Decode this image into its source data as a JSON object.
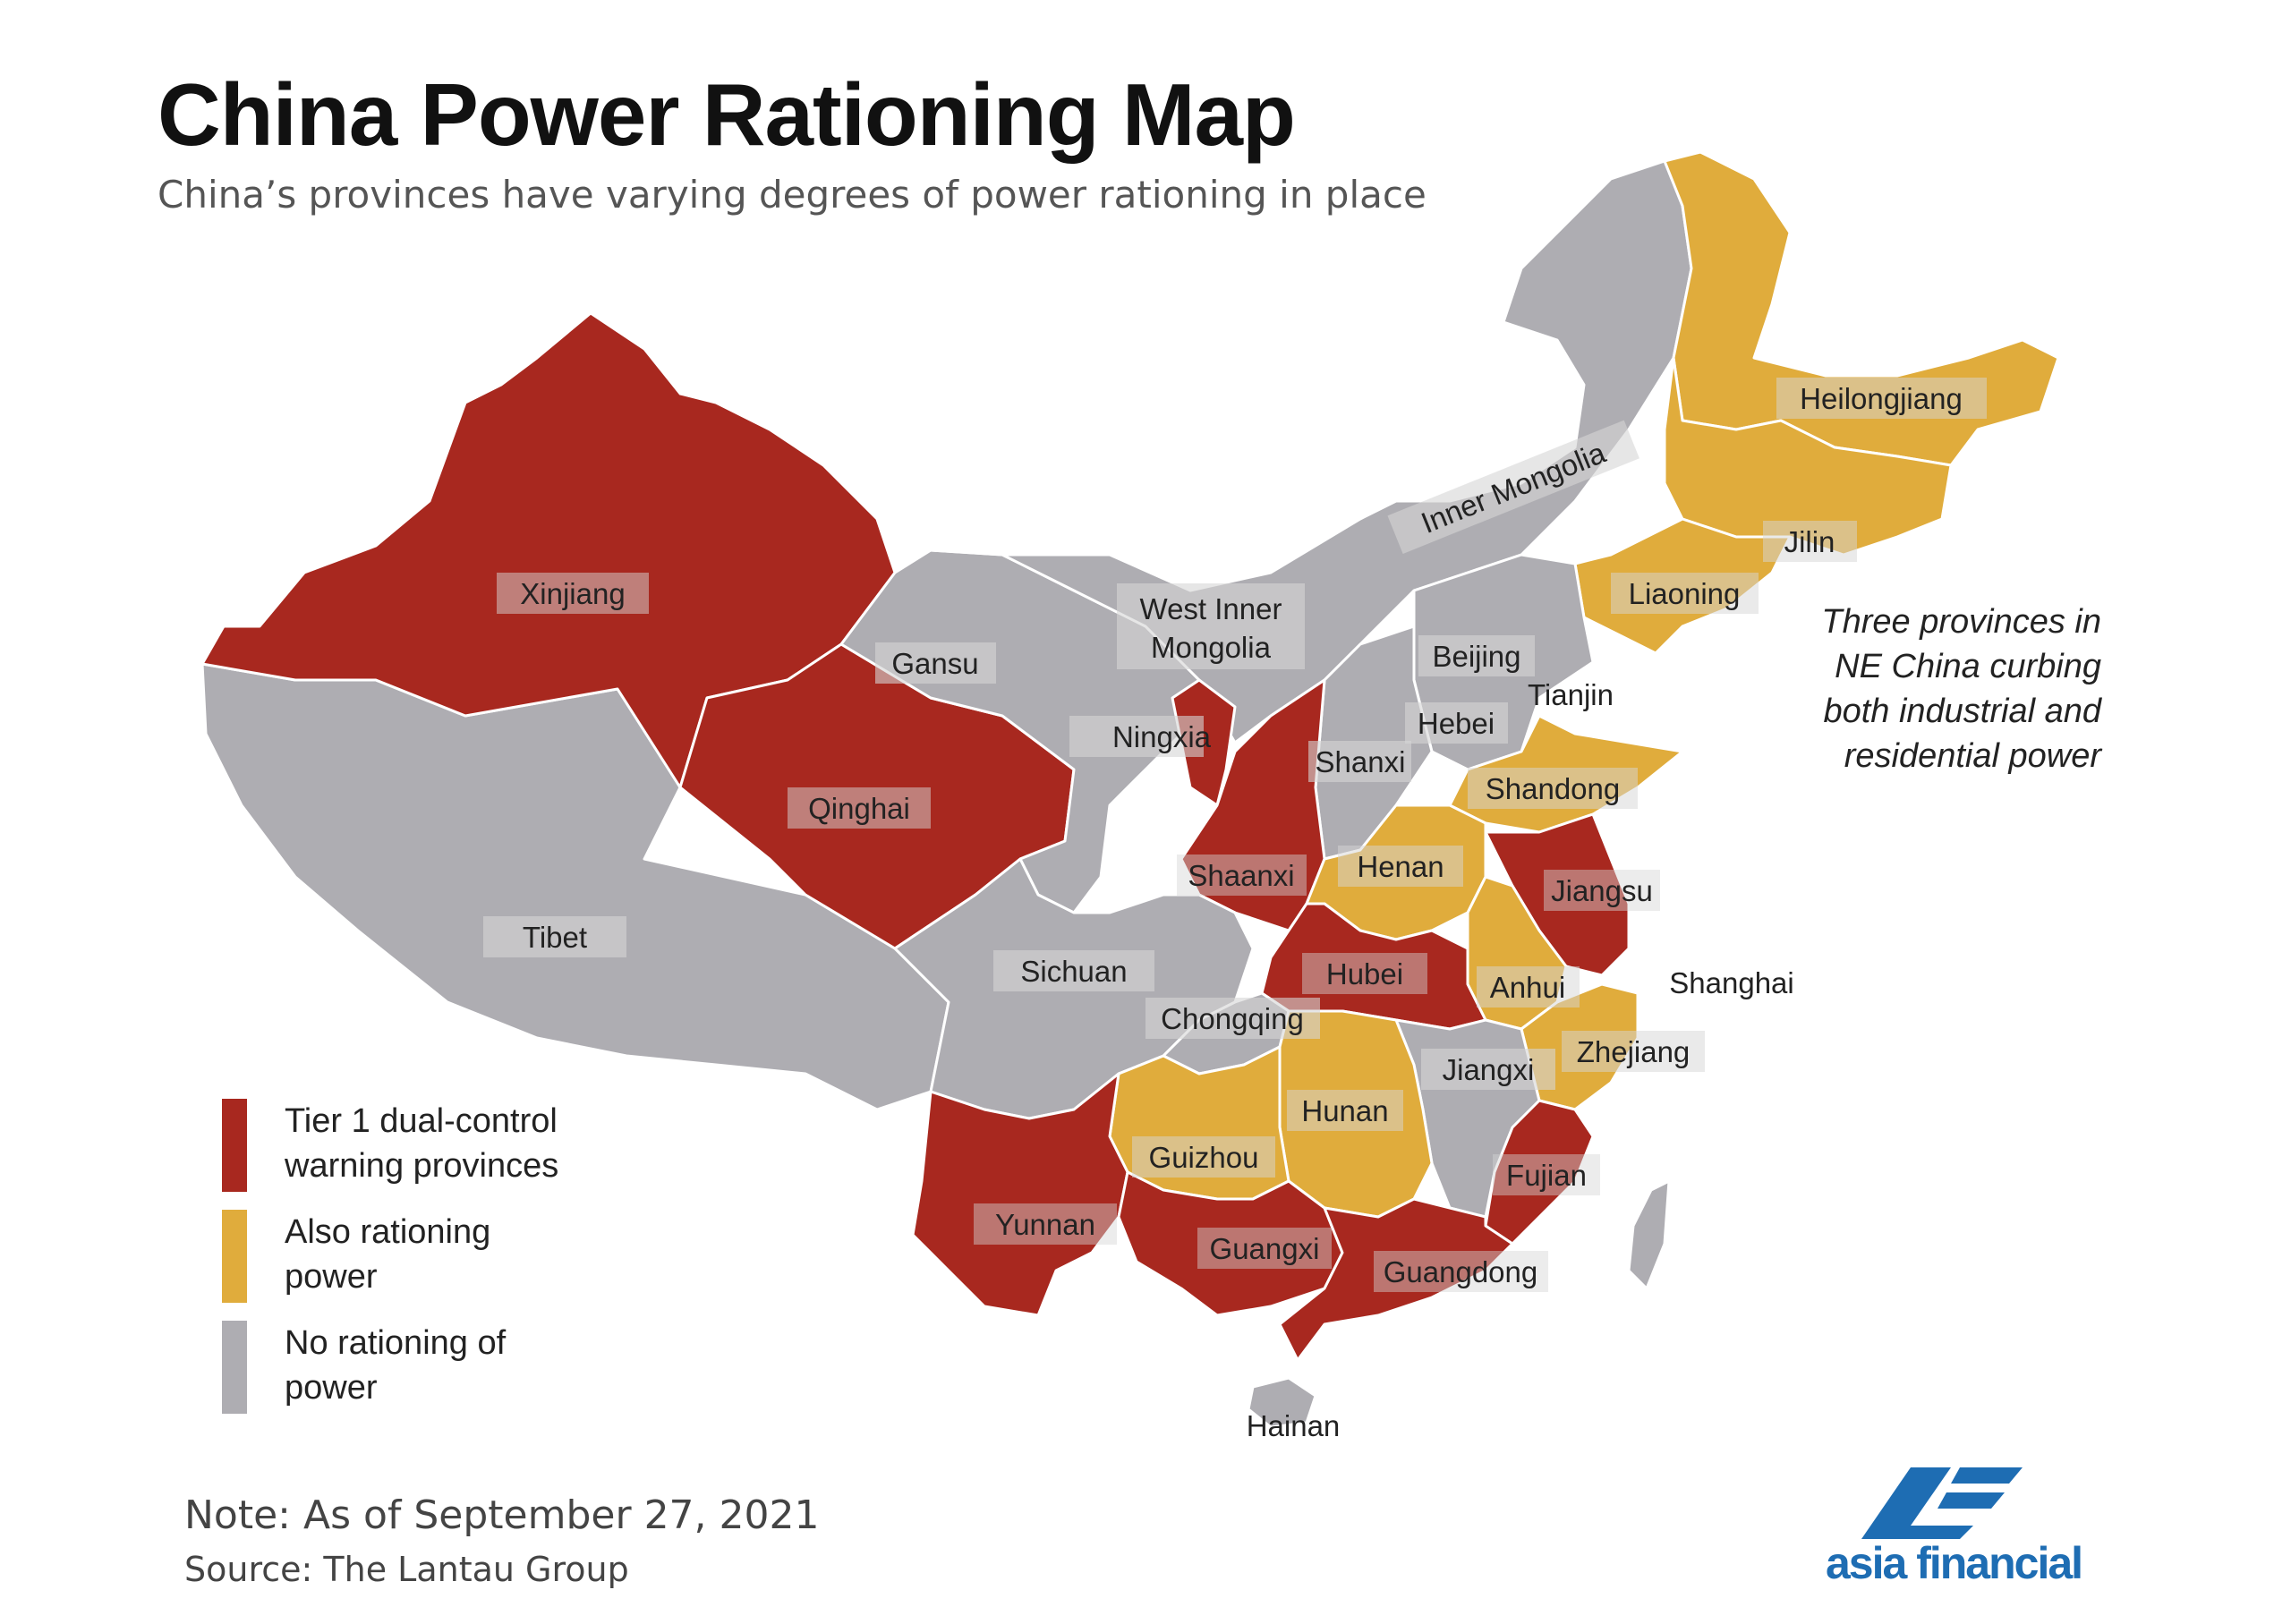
{
  "header": {
    "title": "China Power Rationing Map",
    "subtitle": "China’s provinces have varying degrees of power rationing in place"
  },
  "colors": {
    "tier1": "#a8281f",
    "rationing": "#e0ac3c",
    "none": "#aeadb2",
    "label_box": "#d5d5d5"
  },
  "provinces": [
    {
      "name": "Xinjiang",
      "status": "tier1"
    },
    {
      "name": "Qinghai",
      "status": "tier1"
    },
    {
      "name": "Tibet",
      "status": "none"
    },
    {
      "name": "Gansu",
      "status": "none"
    },
    {
      "name": "West Inner Mongolia",
      "status": "none"
    },
    {
      "name": "Inner Mongolia",
      "status": "none"
    },
    {
      "name": "Heilongjiang",
      "status": "rationing"
    },
    {
      "name": "Jilin",
      "status": "rationing"
    },
    {
      "name": "Liaoning",
      "status": "rationing"
    },
    {
      "name": "Beijing",
      "status": "none"
    },
    {
      "name": "Tianjin",
      "status": "none"
    },
    {
      "name": "Hebei",
      "status": "none"
    },
    {
      "name": "Shanxi",
      "status": "none"
    },
    {
      "name": "Ningxia",
      "status": "tier1"
    },
    {
      "name": "Shaanxi",
      "status": "tier1"
    },
    {
      "name": "Shandong",
      "status": "rationing"
    },
    {
      "name": "Henan",
      "status": "rationing"
    },
    {
      "name": "Jiangsu",
      "status": "tier1"
    },
    {
      "name": "Anhui",
      "status": "rationing"
    },
    {
      "name": "Shanghai",
      "status": "none"
    },
    {
      "name": "Hubei",
      "status": "tier1"
    },
    {
      "name": "Sichuan",
      "status": "none"
    },
    {
      "name": "Chongqing",
      "status": "none"
    },
    {
      "name": "Zhejiang",
      "status": "rationing"
    },
    {
      "name": "Jiangxi",
      "status": "none"
    },
    {
      "name": "Hunan",
      "status": "rationing"
    },
    {
      "name": "Guizhou",
      "status": "rationing"
    },
    {
      "name": "Fujian",
      "status": "tier1"
    },
    {
      "name": "Yunnan",
      "status": "tier1"
    },
    {
      "name": "Guangxi",
      "status": "tier1"
    },
    {
      "name": "Guangdong",
      "status": "tier1"
    },
    {
      "name": "Hainan",
      "status": "none"
    }
  ],
  "labels": {
    "xinjiang": "Xinjiang",
    "qinghai": "Qinghai",
    "tibet": "Tibet",
    "gansu": "Gansu",
    "west_im_1": "West Inner",
    "west_im_2": "Mongolia",
    "inner_mongolia": "Inner Mongolia",
    "heilongjiang": "Heilongjiang",
    "jilin": "Jilin",
    "liaoning": "Liaoning",
    "beijing": "Beijing",
    "tianjin": "Tianjin",
    "hebei": "Hebei",
    "shanxi": "Shanxi",
    "ningxia": "Ningxia",
    "shaanxi": "Shaanxi",
    "shandong": "Shandong",
    "henan": "Henan",
    "jiangsu": "Jiangsu",
    "anhui": "Anhui",
    "shanghai": "Shanghai",
    "hubei": "Hubei",
    "sichuan": "Sichuan",
    "chongqing": "Chongqing",
    "zhejiang": "Zhejiang",
    "jiangxi": "Jiangxi",
    "hunan": "Hunan",
    "guizhou": "Guizhou",
    "fujian": "Fujian",
    "yunnan": "Yunnan",
    "guangxi": "Guangxi",
    "guangdong": "Guangdong",
    "hainan": "Hainan"
  },
  "legend": {
    "tier1_line1": "Tier 1 dual-control",
    "tier1_line2": "warning provinces",
    "rationing_line1": "Also rationing",
    "rationing_line2": "power",
    "none_line1": "No rationing of",
    "none_line2": "power"
  },
  "annotation": {
    "line1": "Three provinces in",
    "line2": "NE China curbing",
    "line3": "both industrial and",
    "line4": "residential power"
  },
  "footer": {
    "note": "Note: As of September 27, 2021",
    "source": "Source: The Lantau Group"
  },
  "logo": {
    "text": "asia financial"
  }
}
